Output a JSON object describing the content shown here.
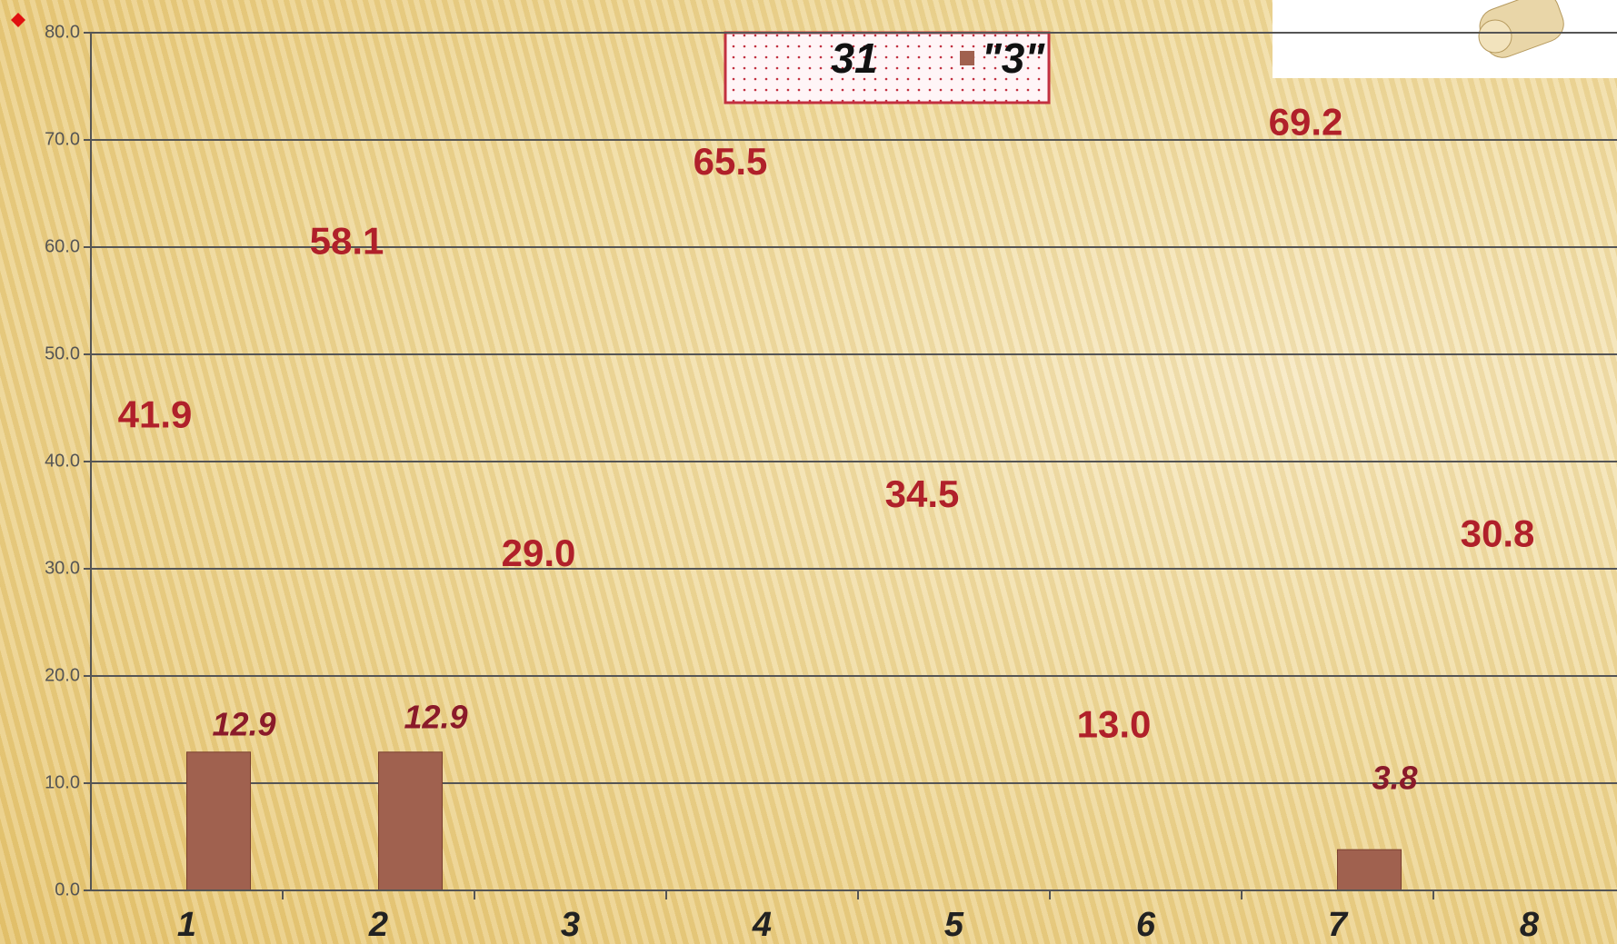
{
  "chart_data": {
    "type": "bar",
    "categories": [
      "1",
      "2",
      "3",
      "4",
      "5",
      "6",
      "7",
      "8"
    ],
    "series": [
      {
        "name": "31",
        "color": "#b0202a",
        "values": [
          41.9,
          58.1,
          29.0,
          65.5,
          34.5,
          13.0,
          69.2,
          30.8
        ],
        "value_labels": [
          "41.9",
          "58.1",
          "29.0",
          "65.5",
          "34.5",
          "13.0",
          "69.2",
          "30.8"
        ]
      },
      {
        "name": "\"3\"",
        "color": "#a0614f",
        "values": [
          12.9,
          12.9,
          null,
          null,
          null,
          null,
          3.8,
          null
        ]
      }
    ],
    "ylim": [
      0,
      80
    ],
    "yticks": [
      {
        "value": 0,
        "label": "0.0"
      },
      {
        "value": 10,
        "label": "10.0"
      },
      {
        "value": 20,
        "label": "20.0"
      },
      {
        "value": 30,
        "label": "30.0"
      },
      {
        "value": 40,
        "label": "40.0"
      },
      {
        "value": 50,
        "label": "50.0"
      },
      {
        "value": 60,
        "label": "60.0"
      },
      {
        "value": 70,
        "label": "70.0"
      },
      {
        "value": 80,
        "label": "80.0"
      }
    ],
    "grid": true
  }
}
